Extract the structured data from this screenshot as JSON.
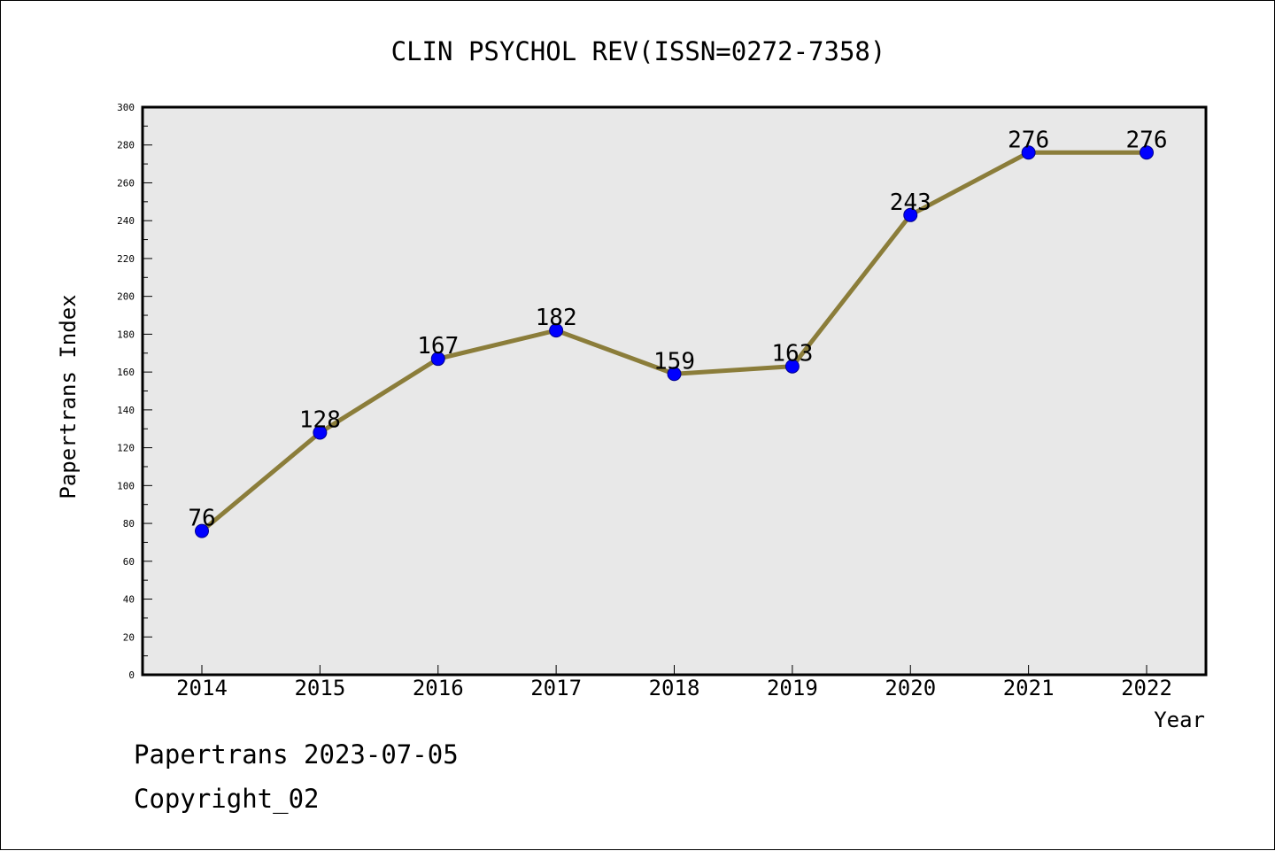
{
  "chart_data": {
    "type": "line",
    "title": "CLIN PSYCHOL REV(ISSN=0272-7358)",
    "xlabel": "Year",
    "ylabel": "Papertrans Index",
    "categories": [
      "2014",
      "2015",
      "2016",
      "2017",
      "2018",
      "2019",
      "2020",
      "2021",
      "2022"
    ],
    "series": [
      {
        "values": [
          76,
          128,
          167,
          182,
          159,
          163,
          243,
          276,
          276
        ]
      }
    ],
    "data_labels": [
      "76",
      "128",
      "167",
      "182",
      "159",
      "163",
      "243",
      "276",
      "276"
    ],
    "ylim": [
      0,
      300
    ],
    "yticks": [
      0,
      20,
      40,
      60,
      80,
      100,
      120,
      140,
      160,
      180,
      200,
      220,
      240,
      260,
      280,
      300
    ],
    "grid": false,
    "colors": {
      "line": "#8b7d3a",
      "marker": "#0000ff",
      "plot_background": "#e8e8e8"
    }
  },
  "footer": {
    "stamp": "Papertrans 2023-07-05",
    "copyright": "Copyright_02"
  }
}
